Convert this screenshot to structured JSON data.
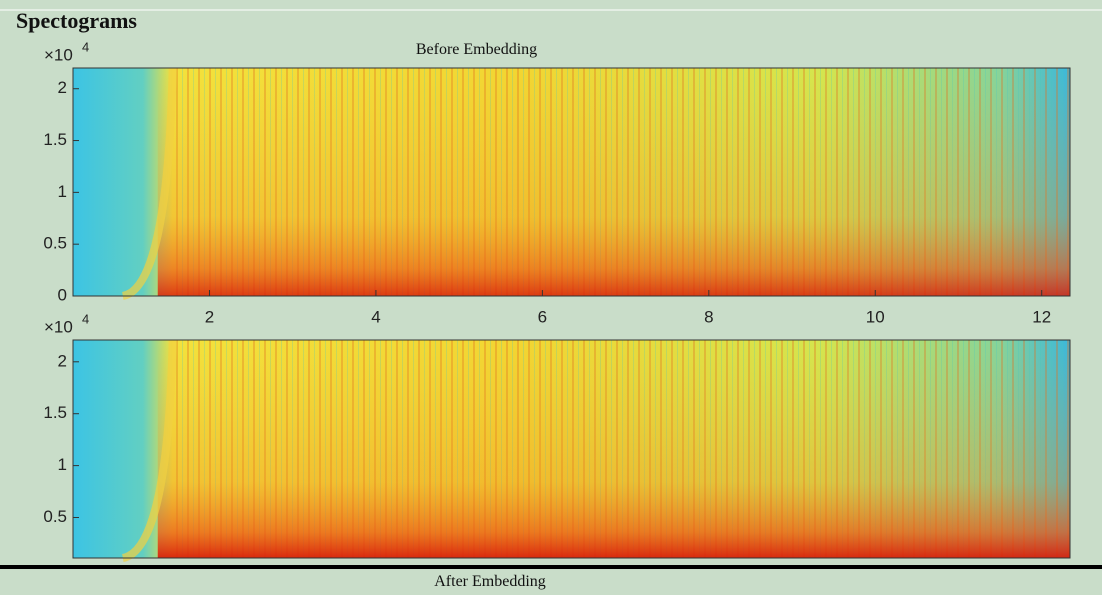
{
  "panel": {
    "title": "Spectograms",
    "bottom_caption": "After Embedding"
  },
  "plots": [
    {
      "title": "Before Embedding",
      "exponent_base": "×10",
      "exponent": "4",
      "xlim": [
        0.36,
        12.34
      ],
      "xticks": [
        2,
        4,
        6,
        8,
        10,
        12
      ],
      "ylim": [
        0,
        2.2
      ],
      "yticks": [
        0,
        0.5,
        1,
        1.5,
        2
      ]
    },
    {
      "exponent_base": "×10",
      "exponent": "4",
      "xlim": [
        0.36,
        12.34
      ],
      "ylim": [
        0.11,
        2.21
      ],
      "yticks": [
        0.5,
        1,
        1.5,
        2
      ]
    }
  ]
}
